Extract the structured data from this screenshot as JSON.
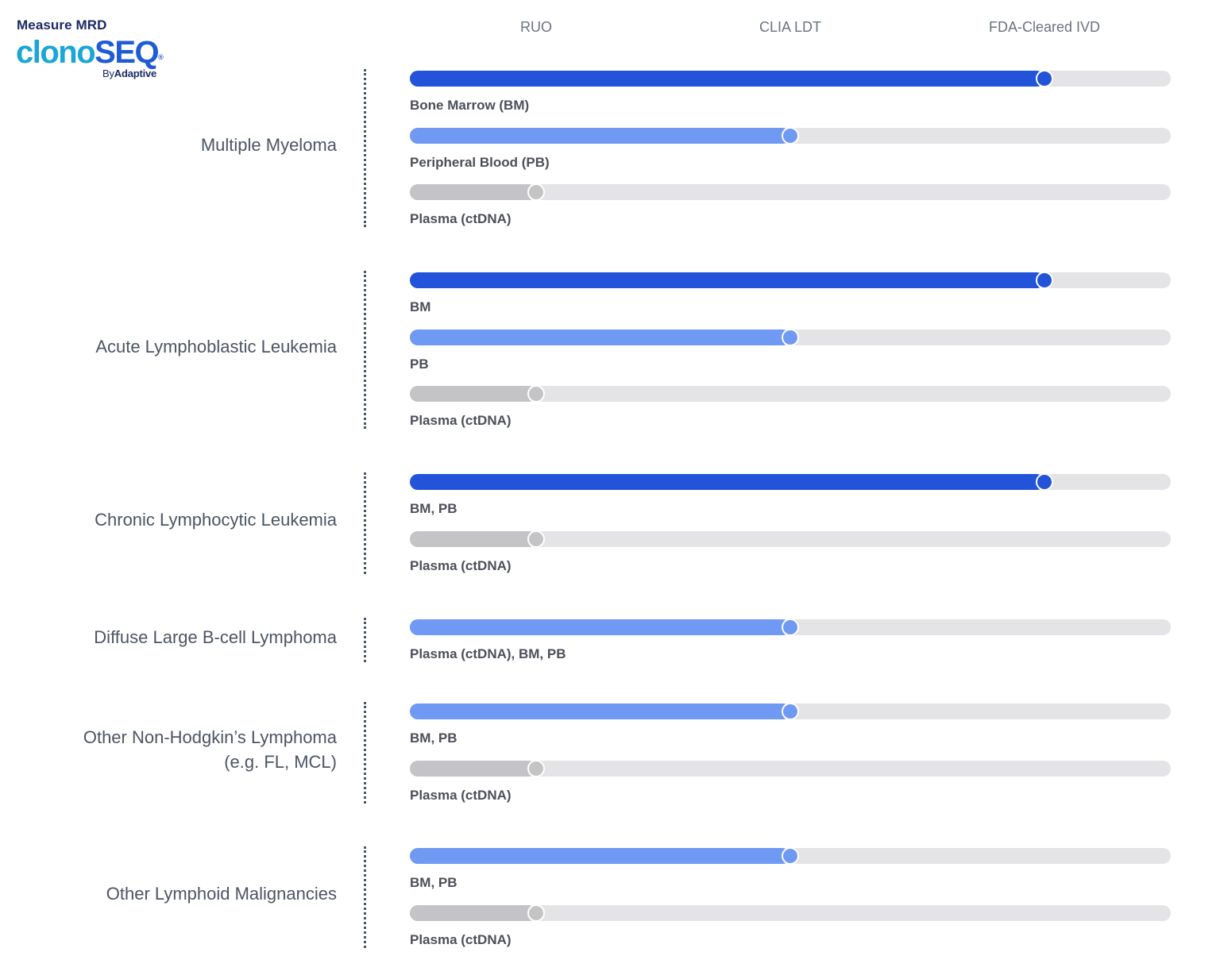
{
  "logo": {
    "tagline": "Measure MRD",
    "wordmark_part1": "clono",
    "wordmark_part2": "SEQ",
    "registered": "®",
    "by": "By",
    "company": "Adaptive"
  },
  "colors": {
    "fda_cleared_ivd": "#2253d8",
    "clia_ldt": "#6f99f2",
    "ruo": "#c4c4c6",
    "track": "#e4e4e6",
    "text": "#4b5563"
  },
  "chart_data": {
    "type": "bar",
    "orientation": "horizontal",
    "x_scale": {
      "categories": [
        "RUO",
        "CLIA LDT",
        "FDA-Cleared IVD"
      ]
    },
    "groups": [
      {
        "name": "Multiple Myeloma",
        "bars": [
          {
            "label": "Bone Marrow (BM)",
            "status": "FDA-Cleared IVD",
            "level": 3
          },
          {
            "label": "Peripheral Blood (PB)",
            "status": "CLIA LDT",
            "level": 2
          },
          {
            "label": "Plasma (ctDNA)",
            "status": "RUO",
            "level": 1
          }
        ]
      },
      {
        "name": "Acute Lymphoblastic Leukemia",
        "bars": [
          {
            "label": "BM",
            "status": "FDA-Cleared IVD",
            "level": 3
          },
          {
            "label": "PB",
            "status": "CLIA LDT",
            "level": 2
          },
          {
            "label": "Plasma (ctDNA)",
            "status": "RUO",
            "level": 1
          }
        ]
      },
      {
        "name": "Chronic Lymphocytic Leukemia",
        "bars": [
          {
            "label": "BM, PB",
            "status": "FDA-Cleared IVD",
            "level": 3
          },
          {
            "label": "Plasma (ctDNA)",
            "status": "RUO",
            "level": 1
          }
        ]
      },
      {
        "name": "Diffuse Large B-cell Lymphoma",
        "bars": [
          {
            "label": "Plasma (ctDNA), BM, PB",
            "status": "CLIA LDT",
            "level": 2
          }
        ]
      },
      {
        "name": "Other Non-Hodgkin’s Lymphoma\n(e.g. FL, MCL)",
        "bars": [
          {
            "label": "BM, PB",
            "status": "CLIA LDT",
            "level": 2
          },
          {
            "label": "Plasma (ctDNA)",
            "status": "RUO",
            "level": 1
          }
        ]
      },
      {
        "name": "Other Lymphoid Malignancies",
        "bars": [
          {
            "label": "BM, PB",
            "status": "CLIA LDT",
            "level": 2
          },
          {
            "label": "Plasma (ctDNA)",
            "status": "RUO",
            "level": 1
          }
        ]
      }
    ]
  }
}
